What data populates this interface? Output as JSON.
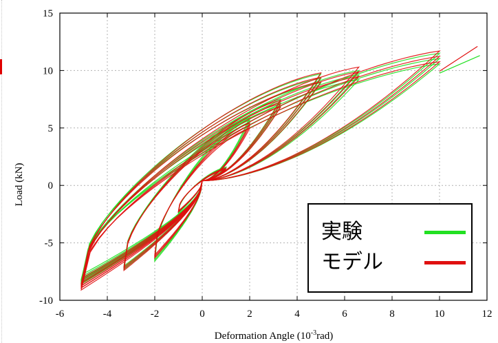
{
  "chart_data": {
    "type": "line",
    "xlabel": "Deformation Angle (10-3rad)",
    "ylabel": "Load (kN)",
    "xlim": [
      -6,
      12
    ],
    "ylim": [
      -10,
      15
    ],
    "xticks": [
      "-6",
      "-4",
      "-2",
      "0",
      "2",
      "4",
      "6",
      "8",
      "10",
      "12"
    ],
    "yticks": [
      "-10",
      "-5",
      "0",
      "5",
      "10",
      "15"
    ],
    "grid": true,
    "legend_position": "bottom-right",
    "colors": {
      "experiment": "#22e022",
      "model": "#e01010"
    },
    "series": [
      {
        "name": "実験",
        "cycles": [
          {
            "amp": 1.0,
            "peak_pos": 1.6,
            "peak_neg": -2.4
          },
          {
            "amp": 2.0,
            "peak_pos": 5.9,
            "peak_neg": -6.6
          },
          {
            "amp": 3.3,
            "peak_pos": 7.5,
            "peak_neg": -7.3
          },
          {
            "amp": 5.0,
            "peak_pos": 9.7,
            "peak_neg": -8.0
          },
          {
            "amp": 6.6,
            "peak_pos": 10.0,
            "peak_neg": -8.6
          },
          {
            "amp": 10.0,
            "peak_pos": 11.5,
            "peak_neg": -8.5
          }
        ],
        "final_point": [
          11.7,
          11.3
        ]
      },
      {
        "name": "モデル",
        "cycles": [
          {
            "amp": 1.0,
            "peak_pos": 1.5,
            "peak_neg": -2.3
          },
          {
            "amp": 2.0,
            "peak_pos": 5.4,
            "peak_neg": -6.3
          },
          {
            "amp": 3.3,
            "peak_pos": 7.4,
            "peak_neg": -7.4
          },
          {
            "amp": 5.0,
            "peak_pos": 9.8,
            "peak_neg": -8.3
          },
          {
            "amp": 6.6,
            "peak_pos": 10.3,
            "peak_neg": -8.9
          },
          {
            "amp": 10.0,
            "peak_pos": 11.7,
            "peak_neg": -9.1
          }
        ],
        "final_point": [
          11.6,
          12.1
        ]
      }
    ]
  }
}
